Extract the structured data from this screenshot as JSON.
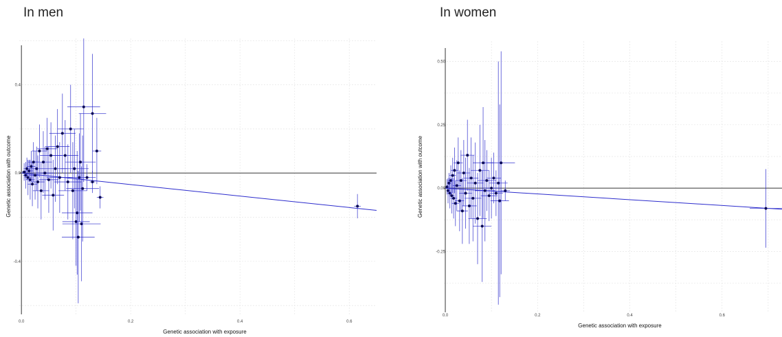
{
  "chart_data": [
    {
      "type": "scatter",
      "title": "In men",
      "xlabel": "Genetic association with exposure",
      "ylabel": "Genetic association with outcome",
      "xlim": [
        -0.004,
        0.65
      ],
      "ylim": [
        -0.64,
        0.61
      ],
      "x_ticks": [
        {
          "v": 0.0,
          "label": "0.0"
        },
        {
          "v": 0.2,
          "label": "0.2"
        },
        {
          "v": 0.4,
          "label": "0.4"
        },
        {
          "v": 0.6,
          "label": "0.6"
        }
      ],
      "y_ticks": [
        {
          "v": 0.4,
          "label": "0.4"
        },
        {
          "v": 0.0,
          "label": "0.0"
        },
        {
          "v": -0.4,
          "label": "-0.4"
        }
      ],
      "fit_line": {
        "intercept": 0.0,
        "slope": -0.26
      },
      "grid": true,
      "legend": "none",
      "color": "#2a2acc",
      "points": [
        {
          "x": 0.005,
          "y": 0.005,
          "xe": 0.004,
          "ye": 0.04
        },
        {
          "x": 0.008,
          "y": -0.01,
          "xe": 0.005,
          "ye": 0.06
        },
        {
          "x": 0.01,
          "y": 0.02,
          "xe": 0.006,
          "ye": 0.05
        },
        {
          "x": 0.012,
          "y": -0.02,
          "xe": 0.006,
          "ye": 0.08
        },
        {
          "x": 0.014,
          "y": 0.01,
          "xe": 0.007,
          "ye": 0.05
        },
        {
          "x": 0.016,
          "y": -0.03,
          "xe": 0.008,
          "ye": 0.09
        },
        {
          "x": 0.018,
          "y": 0.03,
          "xe": 0.008,
          "ye": 0.07
        },
        {
          "x": 0.02,
          "y": -0.05,
          "xe": 0.009,
          "ye": 0.1
        },
        {
          "x": 0.022,
          "y": 0.05,
          "xe": 0.01,
          "ye": 0.09
        },
        {
          "x": 0.025,
          "y": -0.01,
          "xe": 0.01,
          "ye": 0.11
        },
        {
          "x": 0.028,
          "y": 0.02,
          "xe": 0.012,
          "ye": 0.1
        },
        {
          "x": 0.03,
          "y": -0.04,
          "xe": 0.012,
          "ye": 0.12
        },
        {
          "x": 0.033,
          "y": 0.1,
          "xe": 0.014,
          "ye": 0.12
        },
        {
          "x": 0.036,
          "y": -0.08,
          "xe": 0.015,
          "ye": 0.13
        },
        {
          "x": 0.04,
          "y": 0.05,
          "xe": 0.016,
          "ye": 0.14
        },
        {
          "x": 0.043,
          "y": 0.0,
          "xe": 0.016,
          "ye": 0.12
        },
        {
          "x": 0.047,
          "y": 0.11,
          "xe": 0.018,
          "ye": 0.14
        },
        {
          "x": 0.05,
          "y": -0.03,
          "xe": 0.018,
          "ye": 0.15
        },
        {
          "x": 0.054,
          "y": 0.08,
          "xe": 0.02,
          "ye": 0.15
        },
        {
          "x": 0.058,
          "y": -0.1,
          "xe": 0.02,
          "ye": 0.16
        },
        {
          "x": 0.062,
          "y": 0.02,
          "xe": 0.022,
          "ye": 0.15
        },
        {
          "x": 0.066,
          "y": 0.12,
          "xe": 0.022,
          "ye": 0.17
        },
        {
          "x": 0.07,
          "y": -0.02,
          "xe": 0.024,
          "ye": 0.16
        },
        {
          "x": 0.075,
          "y": 0.18,
          "xe": 0.024,
          "ye": 0.18
        },
        {
          "x": 0.08,
          "y": 0.08,
          "xe": 0.024,
          "ye": 0.16
        },
        {
          "x": 0.085,
          "y": -0.04,
          "xe": 0.025,
          "ye": 0.17
        },
        {
          "x": 0.09,
          "y": 0.2,
          "xe": 0.024,
          "ye": 0.2
        },
        {
          "x": 0.094,
          "y": -0.08,
          "xe": 0.026,
          "ye": 0.22
        },
        {
          "x": 0.097,
          "y": 0.02,
          "xe": 0.026,
          "ye": 0.18
        },
        {
          "x": 0.1,
          "y": -0.22,
          "xe": 0.025,
          "ye": 0.2
        },
        {
          "x": 0.102,
          "y": -0.18,
          "xe": 0.028,
          "ye": 0.28
        },
        {
          "x": 0.104,
          "y": -0.29,
          "xe": 0.03,
          "ye": 0.3
        },
        {
          "x": 0.106,
          "y": -0.02,
          "xe": 0.03,
          "ye": 0.2
        },
        {
          "x": 0.108,
          "y": 0.05,
          "xe": 0.028,
          "ye": 0.22
        },
        {
          "x": 0.11,
          "y": -0.23,
          "xe": 0.035,
          "ye": 0.26
        },
        {
          "x": 0.112,
          "y": -0.07,
          "xe": 0.03,
          "ye": 0.24
        },
        {
          "x": 0.114,
          "y": 0.3,
          "xe": 0.03,
          "ye": 0.34
        },
        {
          "x": 0.12,
          "y": -0.02,
          "xe": 0.005,
          "ye": 0.06
        },
        {
          "x": 0.13,
          "y": -0.04,
          "xe": 0.005,
          "ye": 0.05
        },
        {
          "x": 0.138,
          "y": 0.1,
          "xe": 0.008,
          "ye": 0.15
        },
        {
          "x": 0.13,
          "y": 0.27,
          "xe": 0.025,
          "ye": 0.27
        },
        {
          "x": 0.144,
          "y": -0.11,
          "xe": 0.006,
          "ye": 0.05
        },
        {
          "x": 0.615,
          "y": -0.15,
          "xe": 0.006,
          "ye": 0.055
        }
      ]
    },
    {
      "type": "scatter",
      "title": "In women",
      "xlabel": "Genetic association with exposure",
      "ylabel": "Genetic association with outcome",
      "xlim": [
        -0.003,
        0.73
      ],
      "ylim": [
        -0.49,
        0.58
      ],
      "x_ticks": [
        {
          "v": 0.0,
          "label": "0.0"
        },
        {
          "v": 0.2,
          "label": "0.2"
        },
        {
          "v": 0.4,
          "label": "0.4"
        },
        {
          "v": 0.6,
          "label": "0.6"
        }
      ],
      "y_ticks": [
        {
          "v": 0.5,
          "label": "0.50"
        },
        {
          "v": 0.25,
          "label": "0.25"
        },
        {
          "v": 0.0,
          "label": "0.00"
        },
        {
          "v": -0.25,
          "label": "-0.25"
        }
      ],
      "fit_line": {
        "intercept": 0.0,
        "slope": -0.114
      },
      "grid": true,
      "legend": "none",
      "color": "#2a2acc",
      "points": [
        {
          "x": 0.004,
          "y": 0.005,
          "xe": 0.003,
          "ye": 0.03
        },
        {
          "x": 0.006,
          "y": -0.01,
          "xe": 0.004,
          "ye": 0.05
        },
        {
          "x": 0.008,
          "y": 0.02,
          "xe": 0.004,
          "ye": 0.04
        },
        {
          "x": 0.01,
          "y": -0.02,
          "xe": 0.005,
          "ye": 0.06
        },
        {
          "x": 0.012,
          "y": 0.03,
          "xe": 0.006,
          "ye": 0.06
        },
        {
          "x": 0.014,
          "y": -0.03,
          "xe": 0.006,
          "ye": 0.07
        },
        {
          "x": 0.016,
          "y": 0.05,
          "xe": 0.007,
          "ye": 0.07
        },
        {
          "x": 0.018,
          "y": -0.04,
          "xe": 0.007,
          "ye": 0.08
        },
        {
          "x": 0.02,
          "y": 0.07,
          "xe": 0.008,
          "ye": 0.09
        },
        {
          "x": 0.022,
          "y": -0.06,
          "xe": 0.008,
          "ye": 0.09
        },
        {
          "x": 0.025,
          "y": 0.01,
          "xe": 0.009,
          "ye": 0.1
        },
        {
          "x": 0.028,
          "y": 0.1,
          "xe": 0.01,
          "ye": 0.1
        },
        {
          "x": 0.031,
          "y": -0.05,
          "xe": 0.01,
          "ye": 0.12
        },
        {
          "x": 0.034,
          "y": 0.03,
          "xe": 0.012,
          "ye": 0.12
        },
        {
          "x": 0.037,
          "y": -0.09,
          "xe": 0.012,
          "ye": 0.13
        },
        {
          "x": 0.04,
          "y": 0.06,
          "xe": 0.014,
          "ye": 0.13
        },
        {
          "x": 0.044,
          "y": -0.02,
          "xe": 0.014,
          "ye": 0.14
        },
        {
          "x": 0.048,
          "y": 0.13,
          "xe": 0.015,
          "ye": 0.14
        },
        {
          "x": 0.052,
          "y": -0.07,
          "xe": 0.016,
          "ye": 0.15
        },
        {
          "x": 0.056,
          "y": 0.04,
          "xe": 0.016,
          "ye": 0.16
        },
        {
          "x": 0.06,
          "y": -0.04,
          "xe": 0.018,
          "ye": 0.17
        },
        {
          "x": 0.065,
          "y": 0.02,
          "xe": 0.018,
          "ye": 0.16
        },
        {
          "x": 0.07,
          "y": -0.12,
          "xe": 0.02,
          "ye": 0.18
        },
        {
          "x": 0.075,
          "y": 0.07,
          "xe": 0.02,
          "ye": 0.18
        },
        {
          "x": 0.08,
          "y": -0.15,
          "xe": 0.02,
          "ye": 0.22
        },
        {
          "x": 0.082,
          "y": 0.1,
          "xe": 0.022,
          "ye": 0.22
        },
        {
          "x": 0.086,
          "y": -0.01,
          "xe": 0.022,
          "ye": 0.2
        },
        {
          "x": 0.09,
          "y": 0.03,
          "xe": 0.02,
          "ye": 0.12
        },
        {
          "x": 0.095,
          "y": -0.03,
          "xe": 0.018,
          "ye": 0.1
        },
        {
          "x": 0.1,
          "y": 0.0,
          "xe": 0.016,
          "ye": 0.12
        },
        {
          "x": 0.105,
          "y": 0.04,
          "xe": 0.016,
          "ye": 0.1
        },
        {
          "x": 0.11,
          "y": -0.02,
          "xe": 0.015,
          "ye": 0.09
        },
        {
          "x": 0.115,
          "y": 0.02,
          "xe": 0.02,
          "ye": 0.48
        },
        {
          "x": 0.118,
          "y": -0.05,
          "xe": 0.02,
          "ye": 0.38
        },
        {
          "x": 0.121,
          "y": 0.1,
          "xe": 0.03,
          "ye": 0.44
        },
        {
          "x": 0.13,
          "y": -0.01,
          "xe": 0.01,
          "ye": 0.04
        },
        {
          "x": 0.695,
          "y": -0.08,
          "xe": 0.035,
          "ye": 0.155
        }
      ]
    }
  ]
}
